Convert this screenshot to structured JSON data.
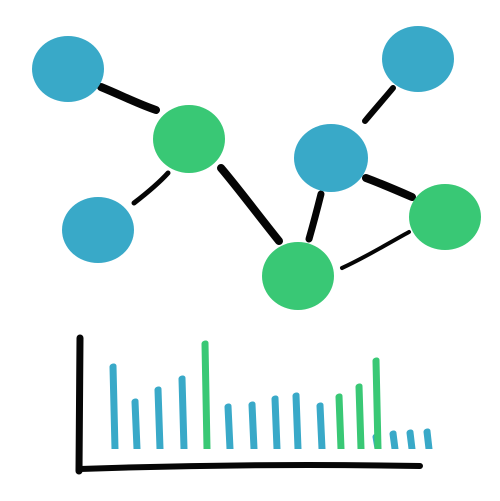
{
  "colors": {
    "blue": "#39A9C8",
    "green": "#39C875",
    "ink": "#050505",
    "background": "#FFFFFF"
  },
  "network": {
    "nodes": [
      {
        "id": "blue-node-top-left",
        "kind": "blue"
      },
      {
        "id": "green-node-upper-middle",
        "kind": "green"
      },
      {
        "id": "blue-node-lower-left",
        "kind": "blue"
      },
      {
        "id": "blue-node-top-right",
        "kind": "blue"
      },
      {
        "id": "blue-node-middle-right",
        "kind": "blue"
      },
      {
        "id": "green-node-right",
        "kind": "green"
      },
      {
        "id": "green-node-bottom-center",
        "kind": "green"
      }
    ],
    "edges": [
      {
        "from": "blue-node-top-left",
        "to": "green-node-upper-middle"
      },
      {
        "from": "blue-node-lower-left",
        "to": "green-node-upper-middle"
      },
      {
        "from": "green-node-upper-middle",
        "to": "green-node-bottom-center"
      },
      {
        "from": "blue-node-top-right",
        "to": "blue-node-middle-right"
      },
      {
        "from": "blue-node-middle-right",
        "to": "green-node-right"
      },
      {
        "from": "blue-node-middle-right",
        "to": "green-node-bottom-center"
      },
      {
        "from": "green-node-bottom-center",
        "to": "green-node-right"
      }
    ]
  },
  "mini_chart": {
    "bars": [
      {
        "kind": "blue",
        "level": 0.77
      },
      {
        "kind": "blue",
        "level": 0.45
      },
      {
        "kind": "blue",
        "level": 0.56
      },
      {
        "kind": "blue",
        "level": 0.66
      },
      {
        "kind": "green",
        "level": 0.98
      },
      {
        "kind": "blue",
        "level": 0.41
      },
      {
        "kind": "blue",
        "level": 0.43
      },
      {
        "kind": "blue",
        "level": 0.48
      },
      {
        "kind": "blue",
        "level": 0.51
      },
      {
        "kind": "blue",
        "level": 0.42
      },
      {
        "kind": "green",
        "level": 0.5
      },
      {
        "kind": "green",
        "level": 0.59
      },
      {
        "kind": "blue",
        "level": 0.14
      },
      {
        "kind": "blue",
        "level": 0.16
      },
      {
        "kind": "blue",
        "level": 0.17
      },
      {
        "kind": "blue",
        "level": 0.18
      },
      {
        "kind": "green",
        "level": 0.83
      }
    ]
  }
}
